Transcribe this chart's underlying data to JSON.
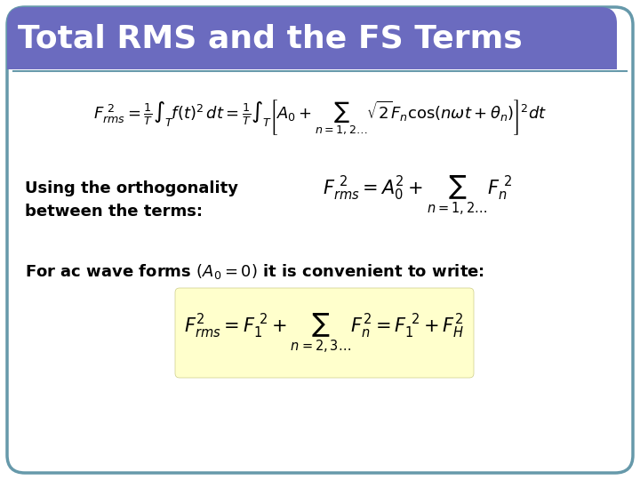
{
  "title": "Total RMS and the FS Terms",
  "title_bg_color": "#6B6BBF",
  "title_text_color": "#ffffff",
  "slide_bg_color": "#ffffff",
  "border_color": "#6699AA",
  "eq1": "$F_{rms}^{\\ 2} = \\frac{1}{T}\\int_{T} f(t)^2\\, dt = \\frac{1}{T}\\int_{T}\\left[A_0 + \\sum_{n=1,2\\ldots}\\sqrt{2}F_n\\cos(n\\omega t + \\theta_n)\\right]^{2} dt$",
  "label_orthogonality": "Using the orthogonality\nbetween the terms:",
  "eq2": "$F_{rms}^{\\ 2} = A_0^{2} + \\sum_{n=1,2\\ldots} F_n^{\\ 2}$",
  "label_acwave": "For ac wave forms $(A_0{=}0)$ it is convenient to write:",
  "eq3": "$F_{rms}^{2} = F_1^{\\ 2} + \\sum_{n=2,3\\ldots} F_n^{2} = F_1^{\\ 2} + F_{H}^{2}$",
  "eq3_bg": "#FFFFCC",
  "font_size_title": 26,
  "font_size_eq1": 13,
  "font_size_eq2": 15,
  "font_size_eq3": 15,
  "font_size_label": 13,
  "font_size_acwave": 13
}
